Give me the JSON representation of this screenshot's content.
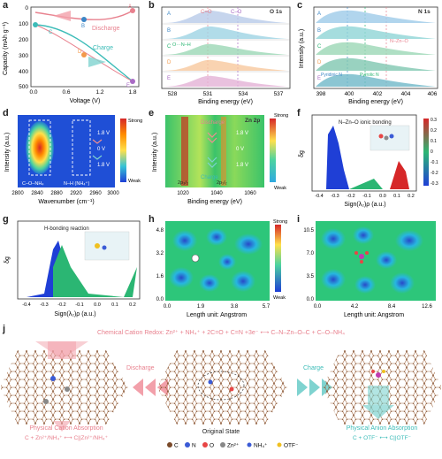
{
  "panels": {
    "a": {
      "label": "a",
      "ylabel": "Capacity (mAh g⁻¹)",
      "xlabel": "Voltage (V)",
      "yticks": [
        "500",
        "400",
        "300",
        "200",
        "100",
        "0"
      ],
      "xticks": [
        "0.0",
        "0.6",
        "1.2",
        "1.8"
      ],
      "discharge": "Discharge",
      "charge": "Charge",
      "points": [
        "A",
        "B",
        "C",
        "D",
        "E"
      ]
    },
    "b": {
      "label": "b",
      "title": "O 1s",
      "xlabel": "Binding energy (eV)",
      "xticks": [
        "528",
        "531",
        "534",
        "537"
      ],
      "ann": [
        "C=O",
        "C–O",
        "O···N–H"
      ],
      "rows": [
        "A",
        "B",
        "C",
        "D",
        "E"
      ]
    },
    "c": {
      "label": "c",
      "title": "N 1s",
      "ylabel": "Intensity (a.u.)",
      "xlabel": "Binding energy (eV)",
      "xticks": [
        "398",
        "400",
        "402",
        "404",
        "406"
      ],
      "ann": [
        "N–Zn–O",
        "Pyridinic N",
        "Pyrrolic N"
      ],
      "rows": [
        "A",
        "B",
        "C",
        "D",
        "E"
      ]
    },
    "d": {
      "label": "d",
      "ylabel": "Intensity (a.u.)",
      "xlabel": "Wavenumber (cm⁻¹)",
      "xticks": [
        "2800",
        "2840",
        "2880",
        "2920",
        "2960",
        "3000"
      ],
      "ann": [
        "C–O–NH₄",
        "N–H (NH₄⁺)"
      ],
      "volts": [
        "1.8 V",
        "0 V",
        "1.8 V"
      ],
      "strong": "Strong",
      "weak": "Weak"
    },
    "e": {
      "label": "e",
      "title": "Zn 2p",
      "ylabel": "Intensity (a.u.)",
      "xlabel": "Binding energy (eV)",
      "xticks": [
        "1020",
        "1040",
        "1060"
      ],
      "ann": [
        "2p₃/₂",
        "2p₁/₂"
      ],
      "volts": [
        "1.8 V",
        "0 V",
        "1.8 V"
      ],
      "discharge": "Discharge",
      "charge": "Charge",
      "strong": "Strong",
      "weak": "Weak"
    },
    "f": {
      "label": "f",
      "title": "N–Zn–O ionic bonding",
      "ylabel": "δg",
      "xlabel": "Sign(λ₂)ρ (a.u.)",
      "xticks": [
        "-0.4",
        "-0.3",
        "-0.2",
        "-0.1",
        "0.0",
        "0.1",
        "0.2"
      ],
      "cbticks": [
        "0.3",
        "0.2",
        "0.1",
        "0",
        "-0.1",
        "-0.2",
        "-0.3"
      ]
    },
    "g": {
      "label": "g",
      "title": "H-bonding reaction",
      "ylabel": "δg",
      "xlabel": "Sign(λ₂)ρ (a.u.)",
      "xticks": [
        "-0.4",
        "-0.3",
        "-0.2",
        "-0.1",
        "0.0",
        "0.1",
        "0.2"
      ]
    },
    "h": {
      "label": "h",
      "xlabel": "Length unit: Angstrom",
      "xticks": [
        "0.0",
        "1.9",
        "3.8",
        "5.7"
      ],
      "yticks": [
        "4.8",
        "3.2",
        "1.6",
        "0.0"
      ],
      "strong": "Strong",
      "weak": "Weak"
    },
    "i": {
      "label": "i",
      "xlabel": "Length unit: Angstrom",
      "xticks": [
        "0.0",
        "4.2",
        "8.4",
        "12.6"
      ],
      "yticks": [
        "10.5",
        "7.0",
        "3.5",
        "0.0"
      ]
    },
    "j": {
      "label": "j",
      "redox": "Chemical Cation Redox:  Zn²⁺ + NH₄⁺ + 2C=O + C=N +3e⁻  ⟷  C–N–Zn–O–C + C–O–NH₄",
      "discharge": "Discharge",
      "charge": "Charge",
      "original": "Original State",
      "cation_abs": "Physical Cation Absorption",
      "cation_eq": "C + Zn²⁺/NH₄⁺  ⟷  C||Zn²⁺/NH₄⁺",
      "anion_abs": "Physical Anion Absorption",
      "anion_eq": "C + OTF⁻  ⟷  C||OTF⁻",
      "legend": [
        "C",
        "N",
        "O",
        "Zn²⁺",
        "NH₄⁺",
        "OTF⁻"
      ]
    }
  },
  "colors": {
    "pink": "#e8818e",
    "teal": "#3cbcb8",
    "green": "#2bb673"
  }
}
